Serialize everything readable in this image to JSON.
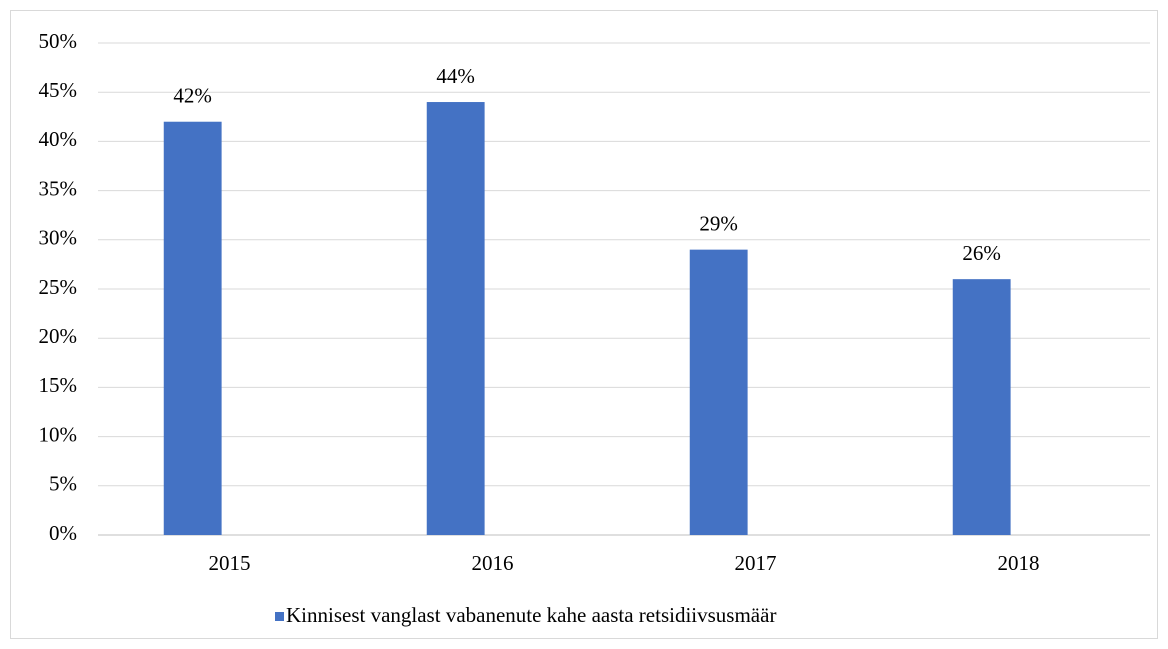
{
  "chart_data": {
    "type": "bar",
    "categories": [
      "2015",
      "2016",
      "2017",
      "2018"
    ],
    "series": [
      {
        "name": "Kinnisest vanglast vabanenute kahe aasta retsidiivsusmäär",
        "color": "#4472c4",
        "values": [
          42,
          44,
          29,
          26
        ],
        "value_labels": [
          "42%",
          "44%",
          "29%",
          "26%"
        ]
      }
    ],
    "ylim": [
      0,
      50
    ],
    "yticks": [
      {
        "value": 0,
        "label": "0%"
      },
      {
        "value": 5,
        "label": "5%"
      },
      {
        "value": 10,
        "label": "10%"
      },
      {
        "value": 15,
        "label": "15%"
      },
      {
        "value": 20,
        "label": "20%"
      },
      {
        "value": 25,
        "label": "25%"
      },
      {
        "value": 30,
        "label": "30%"
      },
      {
        "value": 35,
        "label": "35%"
      },
      {
        "value": 40,
        "label": "40%"
      },
      {
        "value": 45,
        "label": "45%"
      },
      {
        "value": 50,
        "label": "50%"
      }
    ],
    "grid": true,
    "legend": "bottom"
  }
}
